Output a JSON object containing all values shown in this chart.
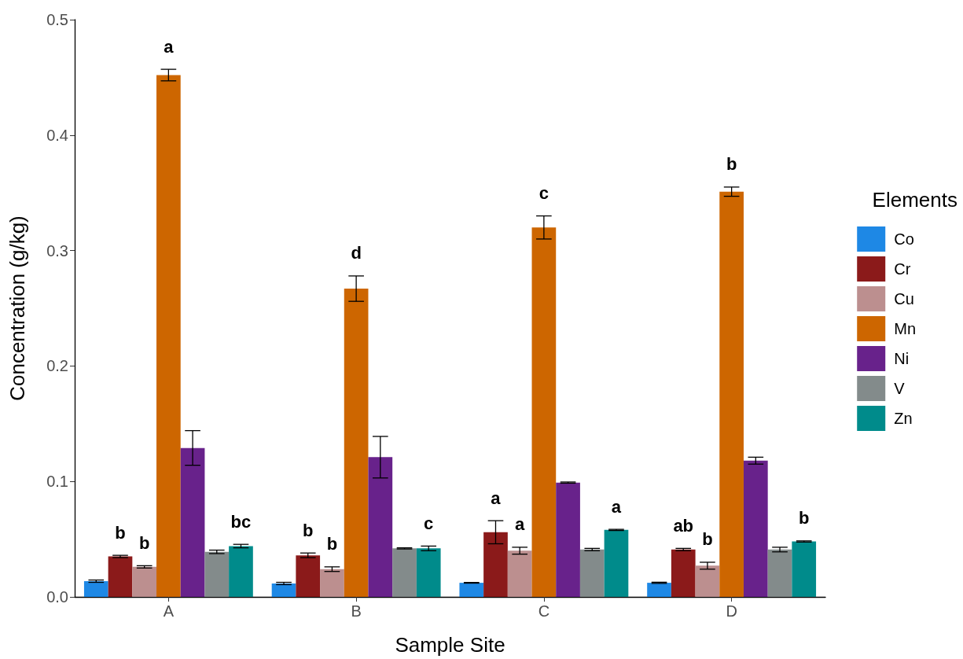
{
  "chart_data": {
    "type": "bar",
    "xlabel": "Sample Site",
    "ylabel": "Concentration (g/kg)",
    "legend_title": "Elements",
    "legend": "right",
    "grid": false,
    "categories": [
      "A",
      "B",
      "C",
      "D"
    ],
    "ylim": [
      0,
      0.5
    ],
    "yticks": [
      {
        "value": 0,
        "label": "0.0"
      },
      0.1,
      0.2,
      0.3,
      0.4,
      0.5
    ],
    "series": [
      {
        "name": "Co",
        "color": "#1e88e5",
        "values": [
          0.0136,
          0.0116,
          0.0122,
          0.0122
        ],
        "errors": [
          0.001,
          0.001,
          0.0003,
          0.0005
        ]
      },
      {
        "name": "Cr",
        "color": "#8b1a1a",
        "values": [
          0.035,
          0.036,
          0.056,
          0.041
        ],
        "errors": [
          0.001,
          0.002,
          0.01,
          0.001
        ],
        "value_labels": [
          "b",
          "b",
          "a",
          "ab"
        ]
      },
      {
        "name": "Cu",
        "color": "#bc8f8f",
        "values": [
          0.026,
          0.024,
          0.04,
          0.027
        ],
        "errors": [
          0.001,
          0.002,
          0.003,
          0.003
        ],
        "value_labels": [
          "b",
          "b",
          "a",
          "b"
        ]
      },
      {
        "name": "Mn",
        "color": "#cd6600",
        "values": [
          0.452,
          0.267,
          0.32,
          0.351
        ],
        "errors": [
          0.005,
          0.011,
          0.01,
          0.004
        ],
        "value_labels": [
          "a",
          "d",
          "c",
          "b"
        ]
      },
      {
        "name": "Ni",
        "color": "#68228b",
        "values": [
          0.129,
          0.121,
          0.099,
          0.118
        ],
        "errors": [
          0.015,
          0.018,
          0.0005,
          0.003
        ]
      },
      {
        "name": "V",
        "color": "#838b8b",
        "values": [
          0.039,
          0.042,
          0.041,
          0.041
        ],
        "errors": [
          0.0015,
          0.0005,
          0.001,
          0.002
        ]
      },
      {
        "name": "Zn",
        "color": "#008b8b",
        "values": [
          0.044,
          0.042,
          0.058,
          0.048
        ],
        "errors": [
          0.0015,
          0.002,
          0.0005,
          0.0005
        ],
        "value_labels": [
          "bc",
          "c",
          "a",
          "b"
        ]
      }
    ]
  }
}
